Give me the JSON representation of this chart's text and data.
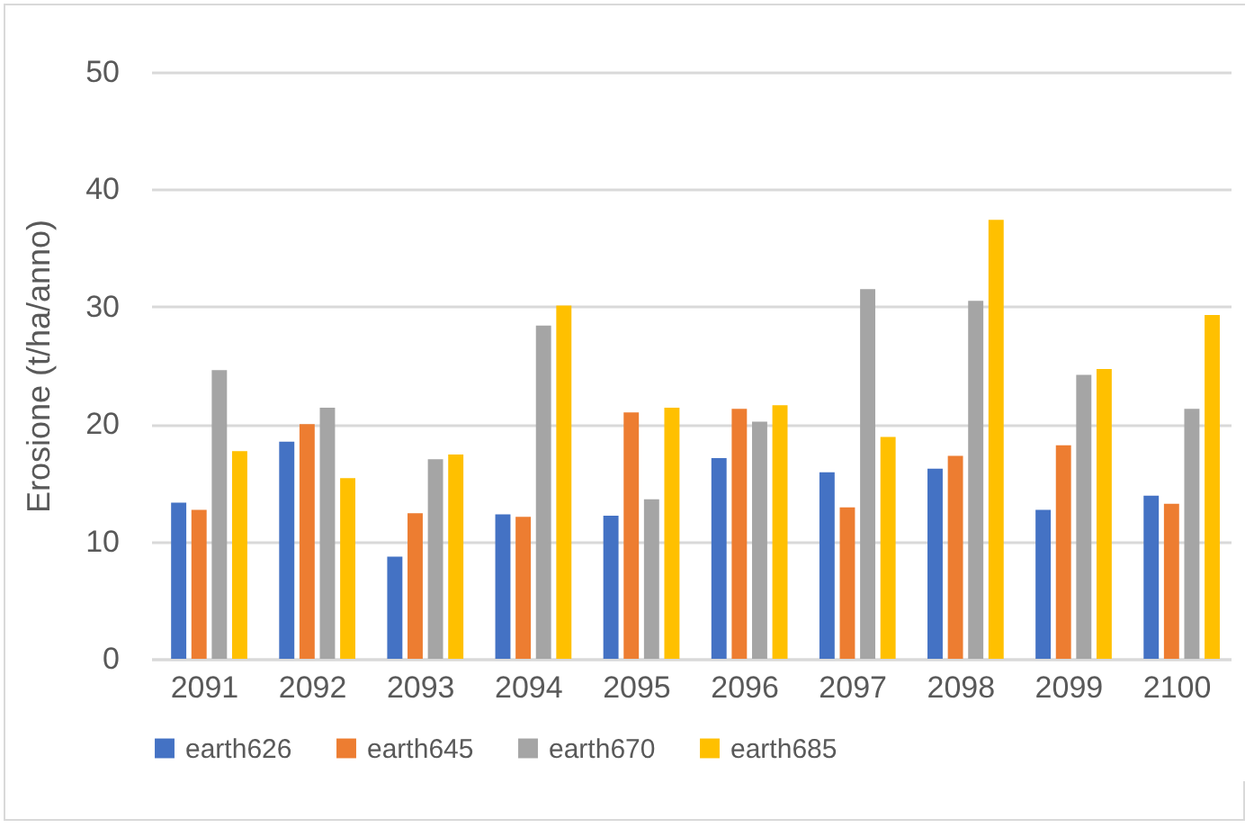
{
  "chart_data": {
    "type": "bar",
    "ylabel": "Erosione (t/ha/anno)",
    "categories": [
      "2091",
      "2092",
      "2093",
      "2094",
      "2095",
      "2096",
      "2097",
      "2098",
      "2099",
      "2100"
    ],
    "series": [
      {
        "name": "earth626",
        "color": "#4472c4",
        "values": [
          13.3,
          18.5,
          8.7,
          12.3,
          12.2,
          17.1,
          15.9,
          16.2,
          12.7,
          13.9
        ]
      },
      {
        "name": "earth645",
        "color": "#ed7d31",
        "values": [
          12.7,
          20.0,
          12.4,
          12.1,
          21.0,
          21.3,
          12.9,
          17.3,
          18.2,
          13.2
        ]
      },
      {
        "name": "earth670",
        "color": "#a5a5a5",
        "values": [
          24.6,
          21.4,
          17.0,
          28.4,
          13.6,
          20.2,
          31.5,
          30.5,
          24.2,
          21.3
        ]
      },
      {
        "name": "earth685",
        "color": "#ffc000",
        "values": [
          17.7,
          15.4,
          17.4,
          30.1,
          21.4,
          21.6,
          18.9,
          37.4,
          24.7,
          29.3
        ]
      }
    ],
    "ylim": [
      0,
      50
    ],
    "yticks": [
      0,
      10,
      20,
      30,
      40,
      50
    ],
    "grid": "y",
    "legend": "bottom"
  }
}
